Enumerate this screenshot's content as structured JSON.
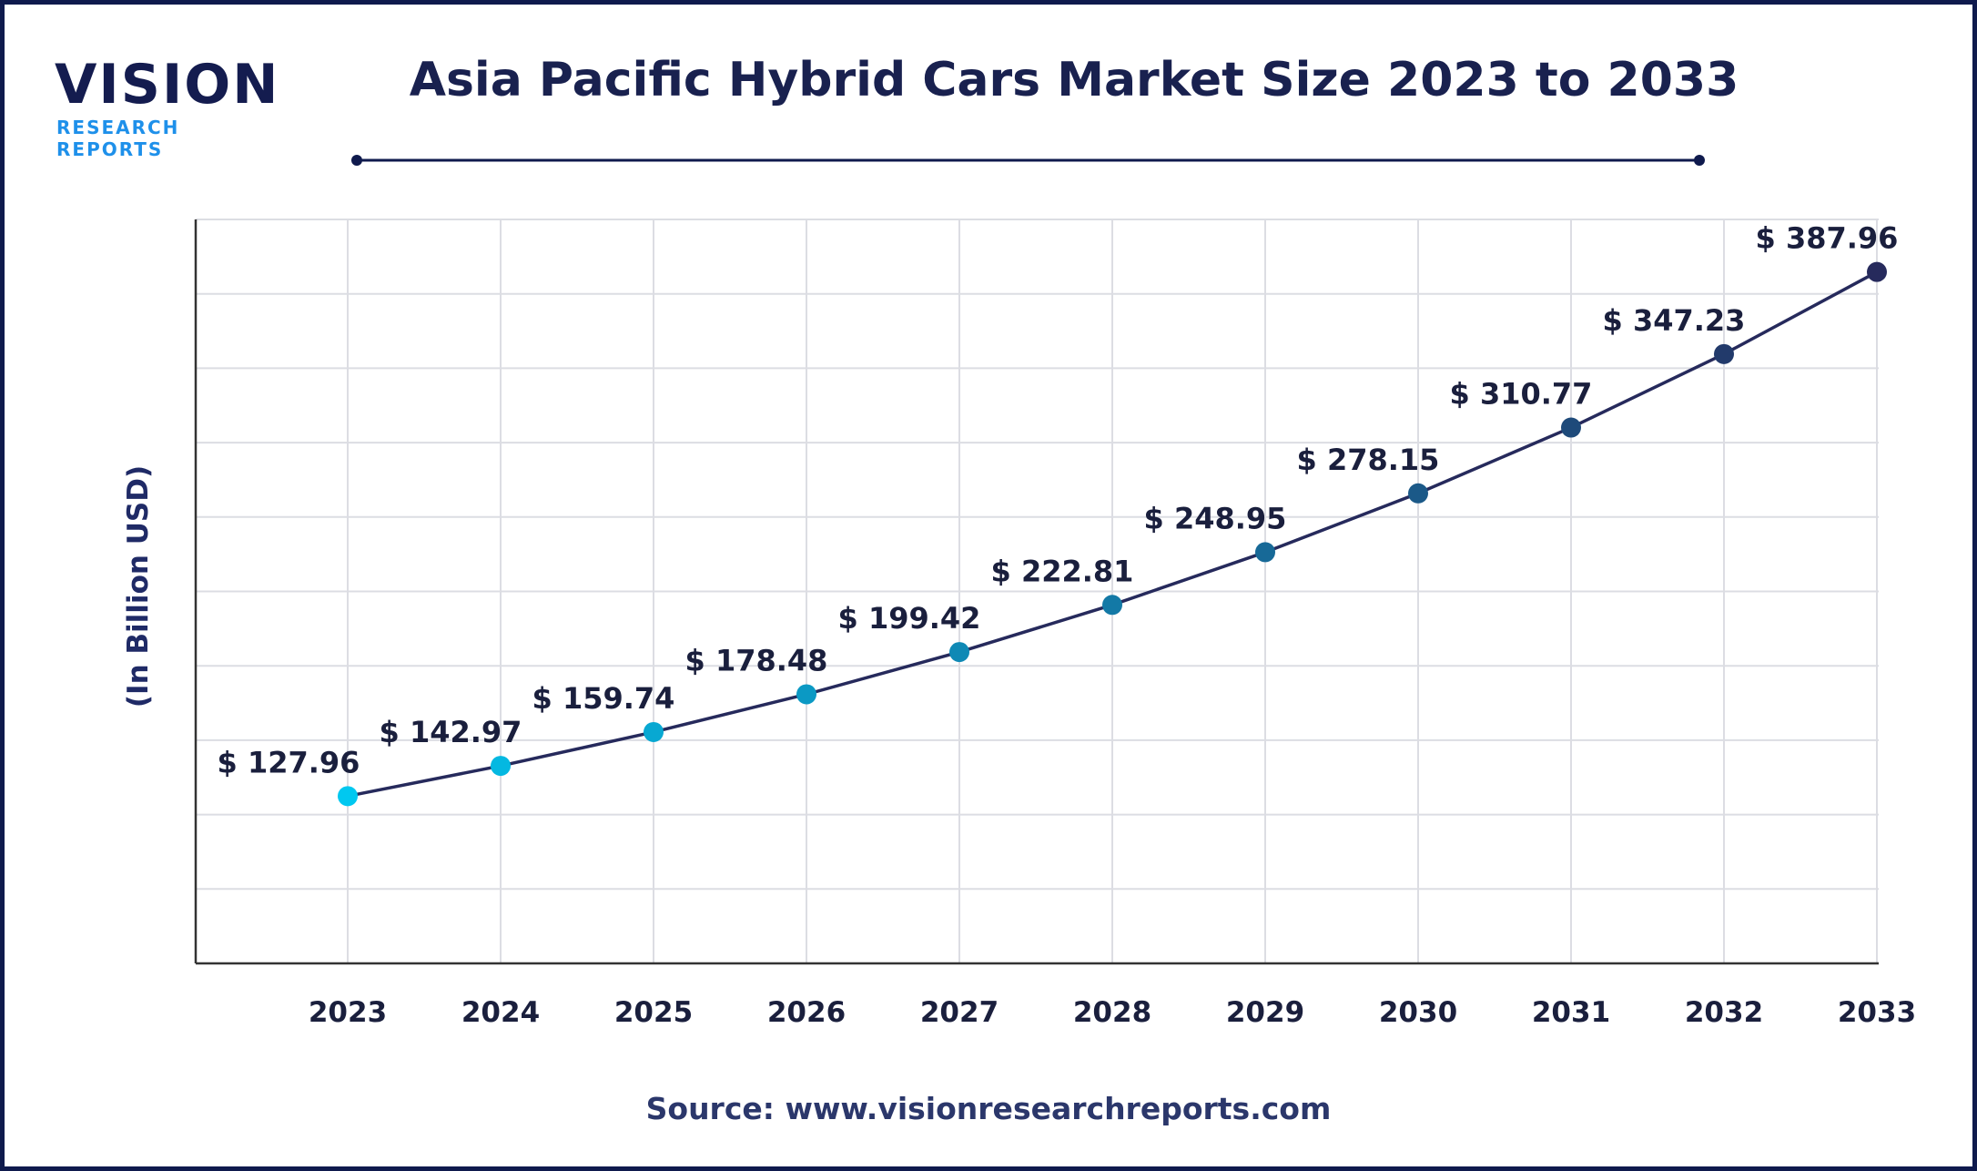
{
  "logo": {
    "main": "VISION",
    "sub": "RESEARCH REPORTS"
  },
  "source": "Source: www.visionresearchreports.com",
  "colors": {
    "border": "#0f1a4d",
    "line": "#262a5c",
    "point_start": "#00c8f0",
    "point_end": "#262a5c",
    "grid": "#dcdde3"
  },
  "chart_data": {
    "type": "line",
    "title": "Asia Pacific Hybrid Cars Market Size 2023 to 2033",
    "xlabel": "",
    "ylabel": "(In Billion USD)",
    "categories": [
      "2023",
      "2024",
      "2025",
      "2026",
      "2027",
      "2028",
      "2029",
      "2030",
      "2031",
      "2032",
      "2033"
    ],
    "values": [
      127.96,
      142.97,
      159.74,
      178.48,
      199.42,
      222.81,
      248.95,
      278.15,
      310.77,
      347.23,
      387.96
    ],
    "data_labels": [
      "$ 127.96",
      "$ 142.97",
      "$ 159.74",
      "$ 178.48",
      "$ 199.42",
      "$ 222.81",
      "$ 248.95",
      "$ 278.15",
      "$ 310.77",
      "$ 347.23",
      "$ 387.96"
    ],
    "ylim": [
      45,
      414
    ],
    "grid": true,
    "y_tick_labels_shown": false,
    "legend": "none"
  }
}
